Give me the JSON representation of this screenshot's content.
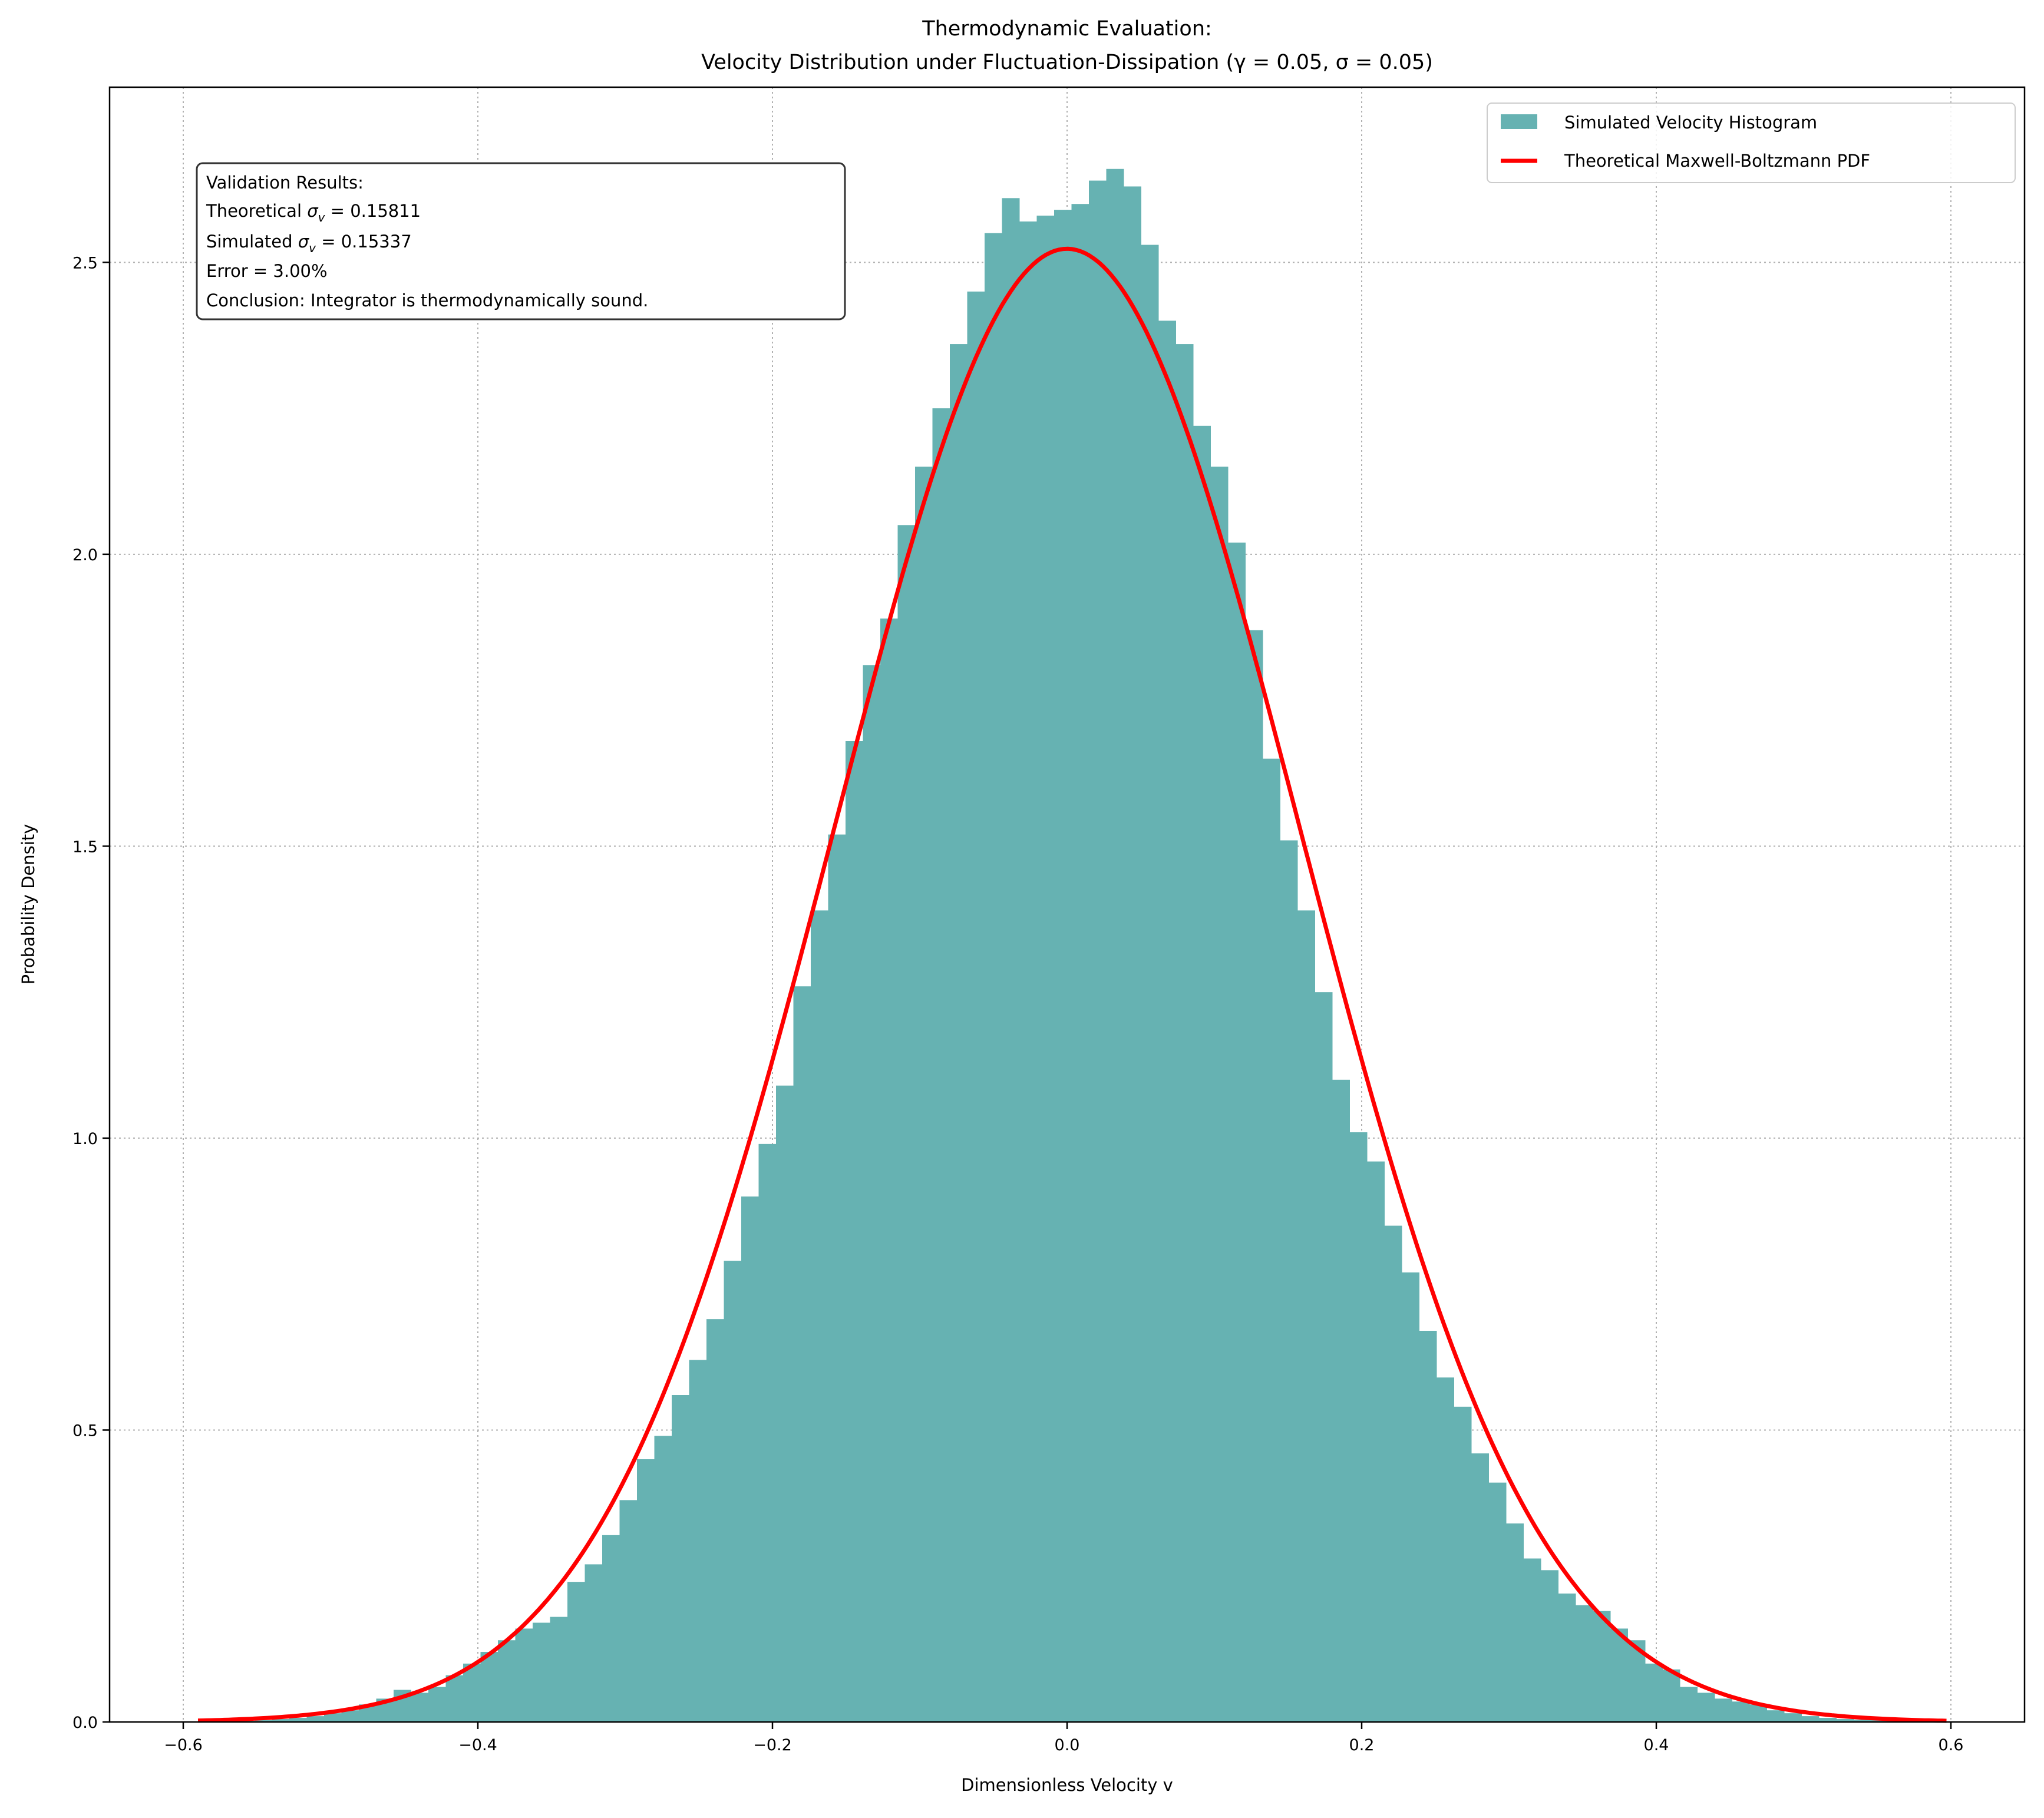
{
  "chart_data": {
    "type": "bar",
    "title_line1": "Thermodynamic Evaluation:",
    "title_line2": "Velocity Distribution under Fluctuation-Dissipation (γ = 0.05, σ = 0.05)",
    "xlabel": "Dimensionless Velocity v",
    "ylabel": "Probability Density",
    "xlim": [
      -0.65,
      0.65
    ],
    "ylim": [
      0,
      2.8
    ],
    "grid": true,
    "x_ticks": [
      -0.6,
      -0.4,
      -0.2,
      0.0,
      0.2,
      0.4,
      0.6
    ],
    "x_tick_labels": [
      "−0.6",
      "−0.4",
      "−0.2",
      "0.0",
      "0.2",
      "0.4",
      "0.6"
    ],
    "y_ticks": [
      0,
      0.5,
      1.0,
      1.5,
      2.0,
      2.5
    ],
    "y_tick_labels": [
      "0.0",
      "0.5",
      "1.0",
      "1.5",
      "2.0",
      "2.5"
    ],
    "histogram": {
      "name": "Simulated Velocity Histogram",
      "color": "#66b2b2",
      "bin_start": -0.587,
      "bin_width": 0.0118,
      "values": [
        0.001,
        0.001,
        0.002,
        0.003,
        0.005,
        0.007,
        0.01,
        0.015,
        0.02,
        0.03,
        0.04,
        0.055,
        0.05,
        0.06,
        0.08,
        0.1,
        0.12,
        0.14,
        0.16,
        0.17,
        0.18,
        0.24,
        0.27,
        0.32,
        0.38,
        0.45,
        0.49,
        0.56,
        0.62,
        0.69,
        0.79,
        0.9,
        0.99,
        1.09,
        1.26,
        1.39,
        1.52,
        1.68,
        1.81,
        1.89,
        2.05,
        2.15,
        2.25,
        2.36,
        2.45,
        2.55,
        2.61,
        2.57,
        2.58,
        2.59,
        2.6,
        2.64,
        2.66,
        2.63,
        2.53,
        2.4,
        2.36,
        2.22,
        2.15,
        2.02,
        1.87,
        1.65,
        1.51,
        1.39,
        1.25,
        1.1,
        1.01,
        0.96,
        0.85,
        0.77,
        0.67,
        0.59,
        0.54,
        0.46,
        0.41,
        0.34,
        0.28,
        0.26,
        0.22,
        0.2,
        0.19,
        0.16,
        0.14,
        0.1,
        0.09,
        0.06,
        0.05,
        0.04,
        0.035,
        0.03,
        0.02,
        0.015,
        0.01,
        0.007,
        0.005,
        0.004,
        0.003,
        0.002,
        0.001,
        0.001,
        0.001
      ]
    },
    "curve": {
      "name": "Theoretical Maxwell-Boltzmann PDF",
      "color": "#ff0000",
      "mean": 0,
      "sigma": 0.15811,
      "x_range": [
        -0.59,
        0.597
      ]
    },
    "legend_position": "top-right",
    "annotation": {
      "heading": "Validation Results:",
      "theoretical_label": "Theoretical ",
      "theoretical_sym": "σ",
      "theoretical_sub": "v",
      "theoretical_value": " = 0.15811",
      "simulated_label": "Simulated ",
      "simulated_sym": "σ",
      "simulated_sub": "v",
      "simulated_value": " = 0.15337",
      "error": "Error = 3.00%",
      "conclusion": "Conclusion: Integrator is thermodynamically sound."
    }
  }
}
